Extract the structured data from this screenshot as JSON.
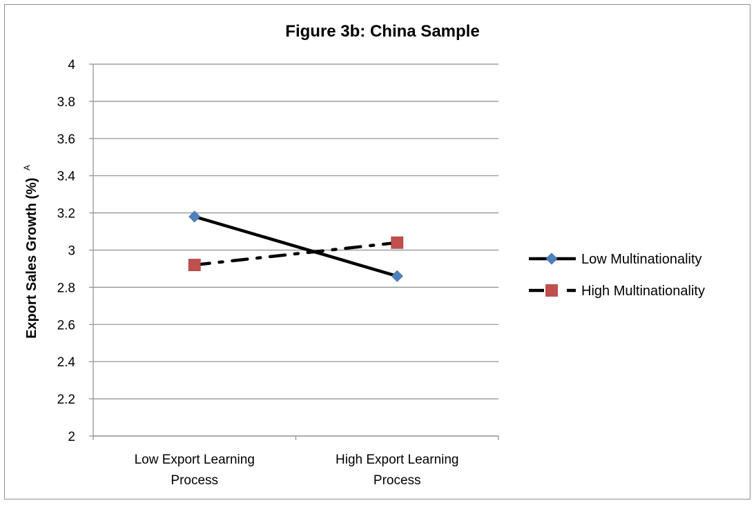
{
  "chart_data": {
    "type": "line",
    "title": "Figure 3b: China Sample",
    "xlabel": "",
    "ylabel": "Export Sales Growth (%)",
    "ylabel_superscript": "A",
    "categories": [
      [
        "Low Export Learning",
        "Process"
      ],
      [
        "High Export Learning",
        "Process"
      ]
    ],
    "ylim": [
      2,
      4
    ],
    "y_ticks": [
      "2",
      "2.2",
      "2.4",
      "2.6",
      "2.8",
      "3",
      "3.2",
      "3.4",
      "3.6",
      "3.8",
      "4"
    ],
    "grid": true,
    "legend_position": "right",
    "series": [
      {
        "name": "Low Multinationality",
        "values": [
          3.18,
          2.86
        ],
        "marker": "diamond",
        "line_style": "solid",
        "line_color": "#000000",
        "marker_color": "#4F81BD"
      },
      {
        "name": "High Multinationality",
        "values": [
          2.92,
          3.04
        ],
        "marker": "square",
        "line_style": "dash-dot",
        "line_color": "#000000",
        "marker_color": "#C0504D"
      }
    ]
  }
}
